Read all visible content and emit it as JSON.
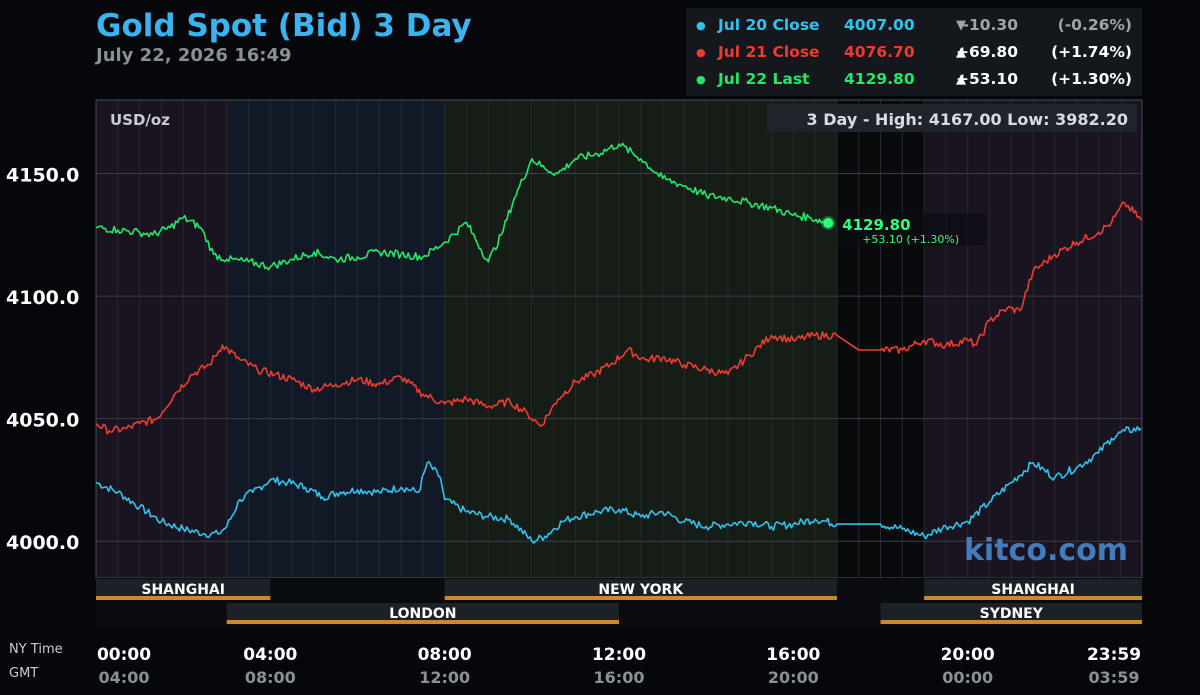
{
  "header": {
    "title": "Gold Spot (Bid) 3 Day",
    "timestamp": "July 22, 2026 16:49"
  },
  "legend": [
    {
      "label": "Jul 20 Close",
      "value": "4007.00",
      "arrow": "▼",
      "change": "-10.30",
      "pct": "(-0.26%)",
      "color": "#2ec3ec",
      "change_color": "#a0a4aa"
    },
    {
      "label": "Jul 21 Close",
      "value": "4076.70",
      "arrow": "▲",
      "change": "+69.80",
      "pct": "(+1.74%)",
      "color": "#ee3b2f",
      "change_color": "#ffffff"
    },
    {
      "label": "Jul 22 Last",
      "value": "4129.80",
      "arrow": "▲",
      "change": "+53.10",
      "pct": "(+1.30%)",
      "color": "#1ee86a",
      "change_color": "#ffffff"
    }
  ],
  "axis_labels": {
    "ny_time": "NY Time",
    "gmt": "GMT"
  },
  "watermark": "kitco.com",
  "last_price_label": "4129.80",
  "last_change_label": "+53.10 (+1.30%)",
  "chart_data": {
    "type": "line",
    "unit_label": "USD/oz",
    "high_low_text": "3 Day - High: 4167.00  Low: 3982.20",
    "ylim": [
      3985,
      4180
    ],
    "y_ticks": [
      4000,
      4050,
      4100,
      4150
    ],
    "y_tick_labels": [
      "4000.0",
      "4050.0",
      "4100.0",
      "4150.0"
    ],
    "x_range_hours": [
      0,
      24
    ],
    "x_ticks": [
      0,
      4,
      8,
      12,
      16,
      20,
      23.983
    ],
    "x_tick_labels_ny": [
      "00:00",
      "04:00",
      "08:00",
      "12:00",
      "16:00",
      "20:00",
      "23:59"
    ],
    "x_tick_labels_gmt": [
      "04:00",
      "08:00",
      "12:00",
      "16:00",
      "20:00",
      "00:00",
      "03:59"
    ],
    "sessions_top": [
      {
        "name": "SHANGHAI",
        "start": 0,
        "end": 4
      },
      {
        "name": "NEW YORK",
        "start": 8,
        "end": 17
      },
      {
        "name": "SHANGHAI",
        "start": 19,
        "end": 24
      }
    ],
    "sessions_bottom": [
      {
        "name": "LONDON",
        "start": 3,
        "end": 12
      },
      {
        "name": "SYDNEY",
        "start": 18,
        "end": 24
      }
    ],
    "series": [
      {
        "name": "Jul 20 Close",
        "color": "#2ec3ec",
        "x": [
          0,
          0.5,
          1,
          1.5,
          2,
          2.5,
          2.8,
          3.0,
          3.3,
          3.6,
          4.0,
          4.4,
          4.8,
          5.2,
          5.6,
          6,
          6.5,
          7,
          7.4,
          7.6,
          7.9,
          8.0,
          8.5,
          9,
          9.5,
          10,
          10.3,
          10.7,
          11,
          11.5,
          12,
          12.5,
          13,
          13.5,
          14,
          14.5,
          15,
          15.5,
          16,
          16.5,
          17,
          17.5,
          18,
          18.5,
          19,
          19.5,
          20,
          20.5,
          21,
          21.5,
          22,
          22.5,
          23,
          23.3,
          23.6,
          23.98
        ],
        "y": [
          4024,
          4020,
          4014,
          4008,
          4005,
          4003,
          4003,
          4006,
          4017,
          4020,
          4025,
          4024,
          4022,
          4018,
          4020,
          4021,
          4020,
          4022,
          4020,
          4032,
          4026,
          4017,
          4012,
          4010,
          4009,
          4000,
          4002,
          4008,
          4010,
          4012,
          4013,
          4010,
          4012,
          4008,
          4006,
          4007,
          4008,
          4006,
          4007,
          4009,
          4007,
          4007,
          4007,
          4005,
          4002,
          4006,
          4008,
          4016,
          4024,
          4032,
          4026,
          4030,
          4036,
          4042,
          4045,
          4046
        ]
      },
      {
        "name": "Jul 21 Close",
        "color": "#ee3b2f",
        "x": [
          0,
          0.3,
          0.7,
          1,
          1.4,
          1.8,
          2.2,
          2.6,
          2.9,
          3.3,
          3.7,
          4.1,
          4.5,
          5,
          5.5,
          6,
          6.5,
          7,
          7.5,
          8,
          8.5,
          9,
          9.5,
          9.9,
          10.2,
          10.6,
          11,
          11.4,
          11.8,
          12.2,
          12.6,
          13,
          13.5,
          14,
          14.5,
          15,
          15.5,
          16,
          16.5,
          17,
          17.5,
          18,
          18.5,
          19,
          19.5,
          20,
          20.2,
          20.5,
          20.9,
          21.2,
          21.5,
          22,
          22.5,
          23,
          23.3,
          23.6,
          23.98
        ],
        "y": [
          4048,
          4045,
          4046,
          4048,
          4050,
          4060,
          4068,
          4072,
          4080,
          4074,
          4070,
          4068,
          4066,
          4062,
          4064,
          4066,
          4064,
          4067,
          4060,
          4056,
          4058,
          4055,
          4057,
          4052,
          4047,
          4058,
          4065,
          4068,
          4072,
          4078,
          4074,
          4075,
          4072,
          4070,
          4068,
          4076,
          4084,
          4082,
          4084,
          4084,
          4078,
          4078,
          4078,
          4082,
          4080,
          4082,
          4080,
          4090,
          4095,
          4094,
          4110,
          4117,
          4122,
          4126,
          4130,
          4138,
          4131
        ]
      },
      {
        "name": "Jul 22 Last",
        "color": "#1ee86a",
        "x": [
          0,
          0.5,
          1,
          1.3,
          1.7,
          2,
          2.4,
          2.7,
          3.0,
          3.5,
          4,
          4.5,
          5,
          5.5,
          6,
          6.5,
          7,
          7.5,
          8,
          8.5,
          9,
          9.3,
          9.6,
          10,
          10.3,
          10.6,
          11,
          11.5,
          12,
          12.5,
          13,
          13.5,
          14,
          14.5,
          15,
          15.5,
          16,
          16.4,
          16.8
        ],
        "y": [
          4128,
          4127,
          4126,
          4125,
          4128,
          4132,
          4128,
          4117,
          4115,
          4114,
          4112,
          4115,
          4118,
          4115,
          4116,
          4118,
          4117,
          4116,
          4122,
          4130,
          4114,
          4125,
          4140,
          4156,
          4152,
          4150,
          4156,
          4158,
          4162,
          4156,
          4148,
          4145,
          4141,
          4140,
          4138,
          4136,
          4133,
          4132,
          4129.8
        ]
      }
    ]
  }
}
